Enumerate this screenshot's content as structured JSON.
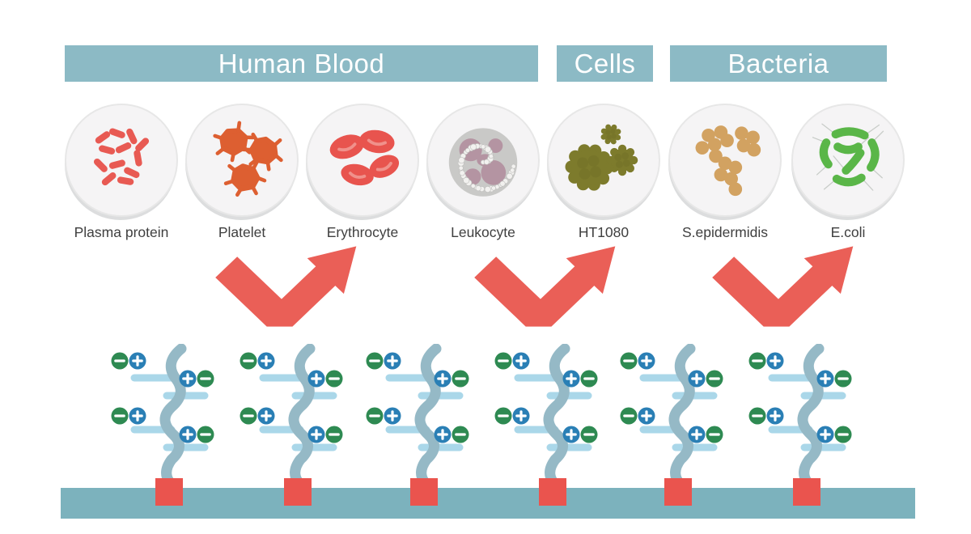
{
  "title_banners": [
    {
      "label": "Human Blood"
    },
    {
      "label": "Cells"
    },
    {
      "label": "Bacteria"
    }
  ],
  "specimens": [
    {
      "label": "Plasma protein"
    },
    {
      "label": "Platelet"
    },
    {
      "label": "Erythrocyte"
    },
    {
      "label": "Leukocyte"
    },
    {
      "label": "HT1080"
    },
    {
      "label": "S.epidermidis"
    },
    {
      "label": "E.coli"
    }
  ],
  "charge_symbols": {
    "plus": "+",
    "minus": "−"
  },
  "colors": {
    "banner_teal": "#8cbac5",
    "surface_teal": "#7cb2bd",
    "arrow_red": "#ea5f57",
    "anchor_red": "#ea544e",
    "chain_blue_gray": "#95b9c6",
    "branch_light_blue": "#aad7e9",
    "positive_charge_blue": "#2a7fb5",
    "negative_charge_green": "#2e8a52",
    "plasma_protein_red": "#e85a53",
    "platelet_orange": "#dd5f31",
    "erythrocyte_red": "#e8544e",
    "erythrocyte_highlight": "#f0918b",
    "leukocyte_gray": "#c9c9c7",
    "leukocyte_mauve": "#b0889a",
    "leukocyte_granule": "#f2f1ef",
    "ht1080_olive": "#7d7b2c",
    "ht1080_olive_dark": "#6c6a24",
    "s_epidermidis_tan": "#d2a261",
    "e_coli_green": "#5ab648",
    "flagella_gray": "#c8ccc8",
    "dish_fill": "#f5f4f5",
    "label_text": "#3f3f3f"
  }
}
